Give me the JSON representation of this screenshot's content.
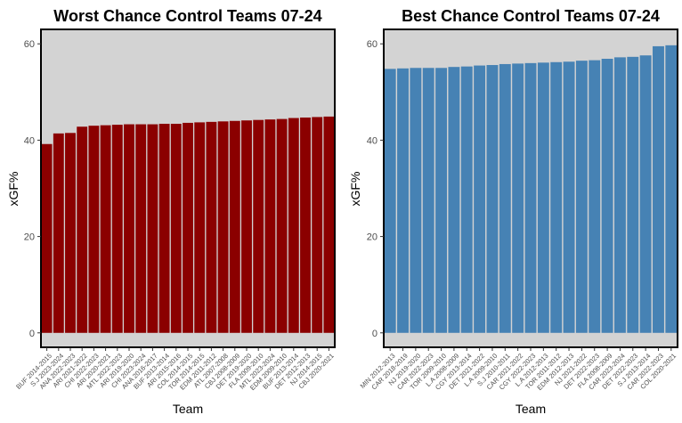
{
  "chart_data": [
    {
      "type": "bar",
      "title": "Worst Chance Control Teams 07-24",
      "xlabel": "Team",
      "ylabel": "xGF%",
      "ylim": [
        -3,
        63
      ],
      "yticks": [
        "0",
        "20",
        "40",
        "60"
      ],
      "grid": false,
      "bar_color": "#8b0000",
      "panel_background": "#d3d3d3",
      "categories": [
        "BUF 2014-2015",
        "S.J 2023-2024",
        "ANA 2022-2023",
        "ARI 2021-2022",
        "CHI 2022-2023",
        "ARI 2020-2021",
        "MTL 2022-2023",
        "ARI 2019-2020",
        "CHI 2023-2024",
        "ANA 2016-2017",
        "BUF 2013-2014",
        "ARI 2015-2016",
        "COL 2014-2015",
        "TOR 2014-2015",
        "EDM 2011-2012",
        "ATL 2007-2008",
        "CBJ 2008-2009",
        "DET 2019-2020",
        "FLA 2009-2010",
        "MTL 2023-2024",
        "EDM 2009-2010",
        "BUF 2013-2014",
        "DET 2012-2013",
        "NJ 2014-2015",
        "CBJ 2020-2021"
      ],
      "values": [
        39.2,
        41.4,
        41.5,
        42.8,
        43.0,
        43.1,
        43.2,
        43.3,
        43.3,
        43.3,
        43.4,
        43.4,
        43.6,
        43.7,
        43.8,
        43.9,
        44.0,
        44.1,
        44.2,
        44.3,
        44.4,
        44.6,
        44.7,
        44.8,
        44.9
      ]
    },
    {
      "type": "bar",
      "title": "Best Chance Control Teams 07-24",
      "xlabel": "Team",
      "ylabel": "xGF%",
      "ylim": [
        -3,
        63
      ],
      "yticks": [
        "0",
        "20",
        "40",
        "60"
      ],
      "grid": false,
      "bar_color": "#4682b4",
      "panel_background": "#d3d3d3",
      "categories": [
        "MIN 2012-2013",
        "CAR 2018-2019",
        "NJ 2019-2020",
        "CAR 2022-2023",
        "TOR 2009-2010",
        "L.A 2008-2009",
        "CGY 2013-2014",
        "DET 2021-2022",
        "L.A 2009-2010",
        "S.J 2010-2011",
        "CAR 2021-2022",
        "CGY 2022-2023",
        "L.A 2012-2013",
        "TOR 2011-2012",
        "EDM 2012-2013",
        "NJ 2021-2022",
        "DET 2022-2023",
        "FLA 2008-2009",
        "CAR 2023-2024",
        "DET 2022-2023",
        "S.J 2013-2014",
        "CAR 2022-2023",
        "COL 2020-2021"
      ],
      "values": [
        54.8,
        54.9,
        55.0,
        55.0,
        55.0,
        55.2,
        55.3,
        55.5,
        55.6,
        55.8,
        55.9,
        56.0,
        56.1,
        56.2,
        56.3,
        56.5,
        56.6,
        56.9,
        57.2,
        57.3,
        57.6,
        59.5,
        59.7
      ]
    }
  ]
}
